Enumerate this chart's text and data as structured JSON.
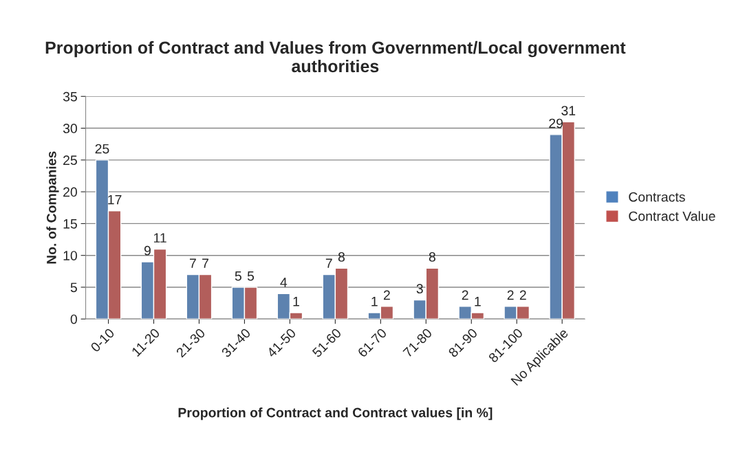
{
  "chart_data": {
    "type": "bar",
    "title": "Proportion of Contract and Values from Government/Local government authorities",
    "xlabel": "Proportion of Contract and Contract values [in %]",
    "ylabel": "No. of Companies",
    "categories": [
      "0-10",
      "11-20",
      "21-30",
      "31-40",
      "41-50",
      "51-60",
      "61-70",
      "71-80",
      "81-90",
      "81-100",
      "No Aplicable"
    ],
    "series": [
      {
        "name": "Contracts",
        "color": "#4f81bd",
        "values": [
          25,
          9,
          7,
          5,
          4,
          7,
          1,
          3,
          2,
          2,
          29
        ]
      },
      {
        "name": "Contract Value",
        "color": "#c0504d",
        "values": [
          17,
          11,
          7,
          5,
          1,
          8,
          2,
          8,
          1,
          2,
          31
        ]
      }
    ],
    "ylim": [
      0,
      35
    ],
    "yticks": [
      0,
      5,
      10,
      15,
      20,
      25,
      30,
      35
    ],
    "grid": "y",
    "legend": "right",
    "data_labels": true
  }
}
